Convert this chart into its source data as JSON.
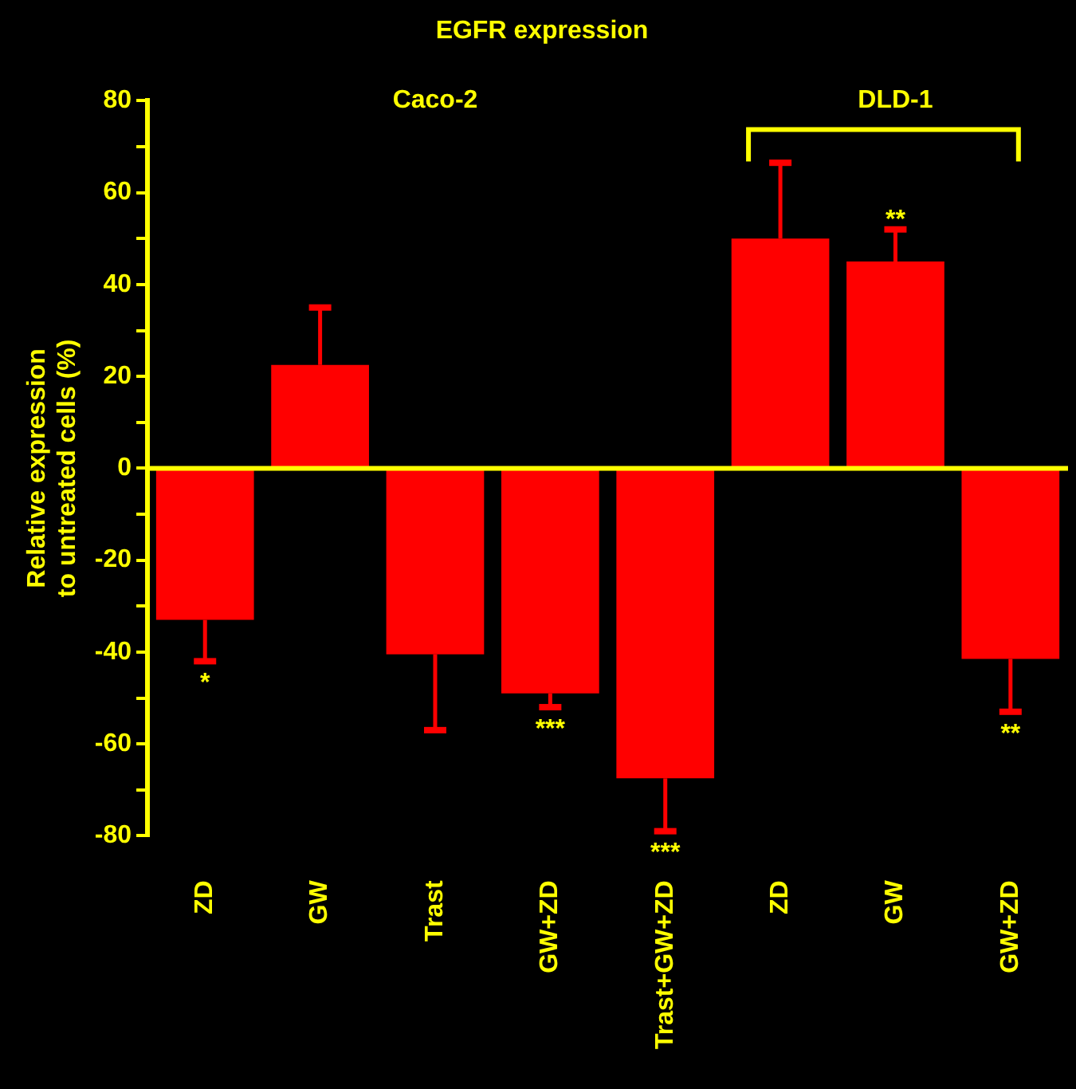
{
  "chart_data": {
    "type": "bar",
    "title": "EGFR expression",
    "ylabel": "Relative expression\nto untreated cells (%)",
    "categories": [
      "ZD",
      "GW",
      "Trast",
      "GW+ZD",
      "Trast+GW+ZD",
      "ZD",
      "GW",
      "GW+ZD"
    ],
    "values": [
      -33,
      22.5,
      -40.5,
      -49,
      -67.5,
      50,
      45,
      -41.5
    ],
    "errors": [
      [
        -42,
        -33
      ],
      [
        22.5,
        35
      ],
      [
        -57,
        -40.5
      ],
      [
        -52,
        -49
      ],
      [
        -79,
        -67.5
      ],
      [
        50,
        66.5
      ],
      [
        45,
        52
      ],
      [
        -53,
        -41.5
      ]
    ],
    "value_labels": [
      "*",
      null,
      null,
      "***",
      "***",
      null,
      "**",
      "**"
    ],
    "color": "#ff0000",
    "annotations": [
      "Caco-2",
      "DLD-1"
    ],
    "ylim": [
      -80,
      80
    ],
    "yticks": [
      -80,
      {
        "value": -70,
        "label": null
      },
      -60,
      {
        "value": -50,
        "label": null
      },
      -40,
      {
        "value": -30,
        "label": null
      },
      -20,
      {
        "value": -10,
        "label": null
      },
      0,
      {
        "value": 10,
        "label": null
      },
      20,
      {
        "value": 30,
        "label": null
      },
      40,
      {
        "value": 50,
        "label": null
      },
      60,
      {
        "value": 70,
        "label": null
      },
      80
    ],
    "ref_lines": [
      {
        "axis": "y",
        "value": 0,
        "color": "#ffff00",
        "line_style": "solid"
      }
    ],
    "grid": false,
    "legend": false
  }
}
